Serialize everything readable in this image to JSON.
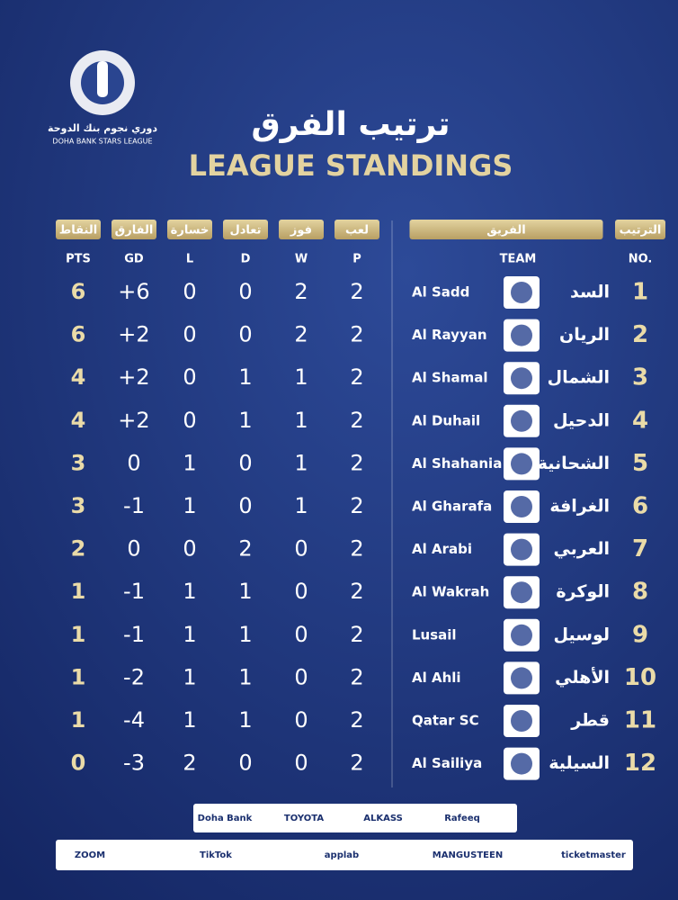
{
  "header": {
    "logo_ar": "دوري نجوم بنك الدوحة",
    "logo_en": "DOHA BANK STARS LEAGUE",
    "title_ar": "ترتيب الفرق",
    "title_en": "LEAGUE STANDINGS"
  },
  "table": {
    "columns_ar": [
      "النقاط",
      "الفارق",
      "خسارة",
      "تعادل",
      "فوز",
      "لعب",
      "الفريق",
      "الترتيب"
    ],
    "columns_en": [
      "PTS",
      "GD",
      "L",
      "D",
      "W",
      "P",
      "TEAM",
      "NO."
    ],
    "rows": [
      [
        6,
        "+6",
        0,
        0,
        2,
        2,
        "Al Sadd",
        "السد",
        1
      ],
      [
        6,
        "+2",
        0,
        0,
        2,
        2,
        "Al Rayyan",
        "الريان",
        2
      ],
      [
        4,
        "+2",
        0,
        1,
        1,
        2,
        "Al Shamal",
        "الشمال",
        3
      ],
      [
        4,
        "+2",
        0,
        1,
        1,
        2,
        "Al Duhail",
        "الدحيل",
        4
      ],
      [
        3,
        0,
        1,
        0,
        1,
        2,
        "Al Shahania",
        "الشحانية",
        5
      ],
      [
        3,
        -1,
        1,
        0,
        1,
        2,
        "Al Gharafa",
        "الغرافة",
        6
      ],
      [
        2,
        0,
        0,
        2,
        0,
        2,
        "Al Arabi",
        "العربي",
        7
      ],
      [
        1,
        -1,
        1,
        1,
        0,
        2,
        "Al Wakrah",
        "الوكرة",
        8
      ],
      [
        1,
        -1,
        1,
        1,
        0,
        2,
        "Lusail",
        "لوسيل",
        9
      ],
      [
        1,
        -2,
        1,
        1,
        0,
        2,
        "Al Ahli",
        "الأهلي",
        10
      ],
      [
        1,
        -4,
        1,
        1,
        0,
        2,
        "Qatar SC",
        "قطر",
        11
      ],
      [
        0,
        -3,
        2,
        0,
        0,
        2,
        "Al Sailiya",
        "السيلية",
        12
      ]
    ]
  },
  "sponsors": {
    "top": [
      "Doha Bank",
      "TOYOTA",
      "ALKASS",
      "Rafeeq"
    ],
    "bottom": [
      "ZOOM",
      "TikTok",
      "applab",
      "MANGUSTEEN",
      "ticketmaster"
    ]
  }
}
